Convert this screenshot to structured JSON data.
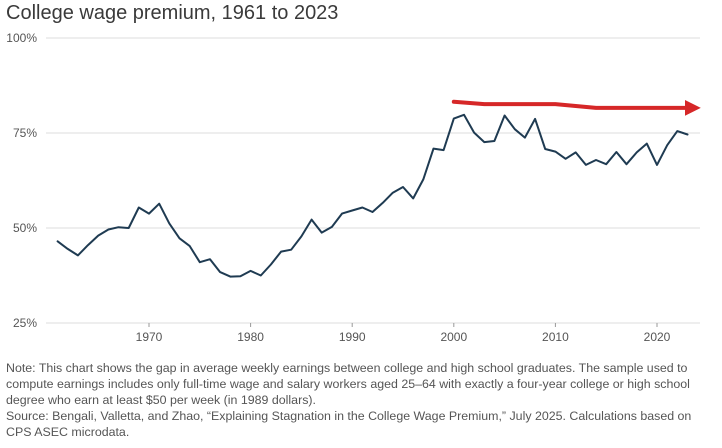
{
  "title": "College wage premium, 1961 to 2023",
  "note": "Note: This chart shows the gap in average weekly earnings between college and high school graduates. The sample used to compute earnings includes only full-time wage and salary workers aged 25–64 with exactly a four-year college or high school degree who earn at least $50 per week (in 1989 dollars).",
  "source": "Source: Bengali, Valletta, and Zhao, “Explaining Stagnation in the College Wage Premium,” July 2025. Calculations based on CPS ASEC microdata.",
  "colors": {
    "series": "#1f3b52",
    "annotation": "#d62728",
    "grid": "#dddddd"
  },
  "chart_data": {
    "type": "line",
    "title": "College wage premium, 1961 to 2023",
    "xlabel": "",
    "ylabel": "",
    "xlim": [
      1960,
      2024
    ],
    "ylim": [
      25,
      100
    ],
    "y_ticks": [
      {
        "value": 100,
        "label": "100%"
      },
      {
        "value": 75,
        "label": "75%"
      },
      {
        "value": 50,
        "label": "50%"
      },
      {
        "value": 25,
        "label": "25%"
      }
    ],
    "x_ticks": [
      {
        "value": 1970,
        "label": "1970"
      },
      {
        "value": 1980,
        "label": "1980"
      },
      {
        "value": 1990,
        "label": "1990"
      },
      {
        "value": 2000,
        "label": "2000"
      },
      {
        "value": 2010,
        "label": "2010"
      },
      {
        "value": 2020,
        "label": "2020"
      }
    ],
    "grid": "horizontal",
    "series": [
      {
        "name": "College wage premium",
        "x": [
          1961,
          1962,
          1963,
          1964,
          1965,
          1966,
          1967,
          1968,
          1969,
          1970,
          1971,
          1972,
          1973,
          1974,
          1975,
          1976,
          1977,
          1978,
          1979,
          1980,
          1981,
          1982,
          1983,
          1984,
          1985,
          1986,
          1987,
          1988,
          1989,
          1990,
          1991,
          1992,
          1993,
          1994,
          1995,
          1996,
          1997,
          1998,
          1999,
          2000,
          2001,
          2002,
          2003,
          2004,
          2005,
          2006,
          2007,
          2008,
          2009,
          2010,
          2011,
          2012,
          2013,
          2014,
          2015,
          2016,
          2017,
          2018,
          2019,
          2020,
          2021,
          2022,
          2023
        ],
        "values": [
          46.5,
          44.5,
          42.8,
          45.5,
          48.0,
          49.6,
          50.2,
          50.0,
          55.4,
          53.8,
          56.4,
          51.2,
          47.3,
          45.3,
          41.0,
          41.8,
          38.4,
          37.2,
          37.3,
          38.7,
          37.5,
          40.4,
          43.8,
          44.3,
          47.8,
          52.2,
          48.8,
          50.3,
          53.8,
          54.6,
          55.4,
          54.2,
          56.6,
          59.3,
          60.8,
          57.8,
          62.8,
          70.9,
          70.5,
          78.8,
          79.8,
          75.1,
          72.6,
          72.9,
          79.6,
          76.0,
          73.8,
          78.7,
          70.8,
          70.1,
          68.2,
          69.9,
          66.6,
          67.9,
          66.8,
          70.0,
          66.8,
          69.9,
          72.2,
          66.6,
          71.8,
          75.5,
          74.6
        ]
      }
    ],
    "annotations": [
      {
        "type": "arrow",
        "x": [
          2000,
          2003,
          2010,
          2014,
          2023.6
        ],
        "values": [
          83.2,
          82.6,
          82.6,
          81.6,
          81.6
        ]
      }
    ]
  }
}
